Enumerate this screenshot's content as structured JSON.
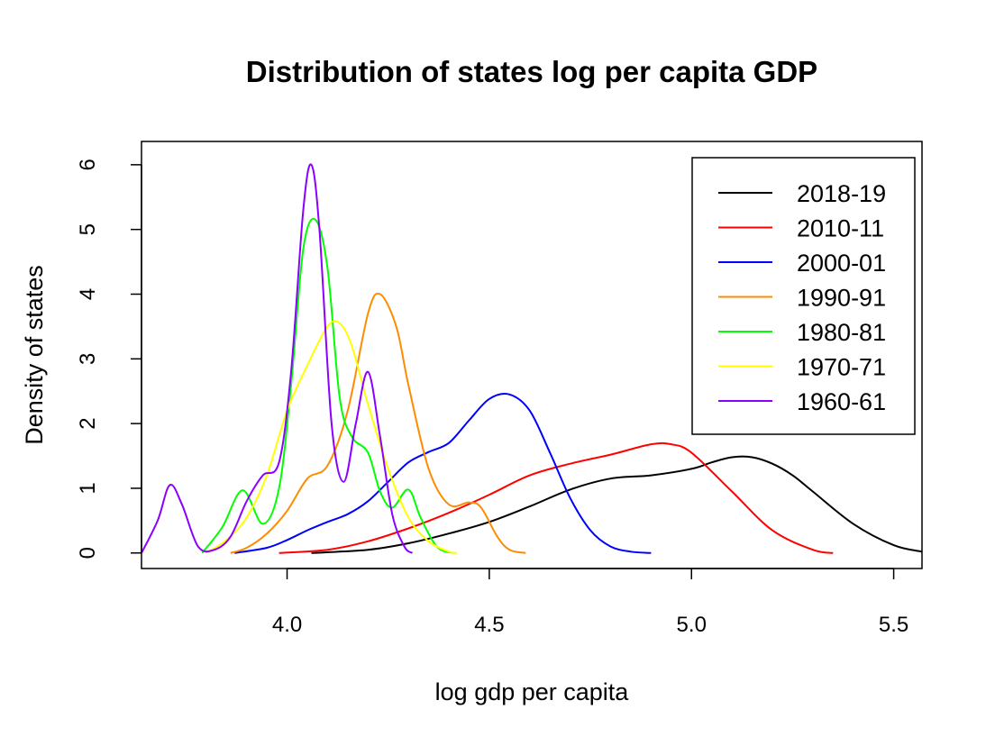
{
  "chart_data": {
    "type": "line",
    "title": "Distribution of states log per capita GDP",
    "xlabel": "log gdp per capita",
    "ylabel": "Density of states",
    "xlim": [
      3.64,
      5.57
    ],
    "ylim": [
      -0.24,
      6.36
    ],
    "xticks": [
      4.0,
      4.5,
      5.0,
      5.5
    ],
    "xtick_labels": [
      "4.0",
      "4.5",
      "5.0",
      "5.5"
    ],
    "yticks": [
      0,
      1,
      2,
      3,
      4,
      5,
      6
    ],
    "ytick_labels": [
      "0",
      "1",
      "2",
      "3",
      "4",
      "5",
      "6"
    ],
    "grid": false,
    "legend_position": "top-right",
    "series": [
      {
        "name": "2018-19",
        "color": "#000000",
        "x": [
          4.06,
          4.2,
          4.3,
          4.4,
          4.5,
          4.6,
          4.7,
          4.8,
          4.9,
          5.0,
          5.05,
          5.1,
          5.15,
          5.2,
          5.25,
          5.3,
          5.4,
          5.5,
          5.57
        ],
        "y": [
          0.0,
          0.05,
          0.15,
          0.3,
          0.48,
          0.72,
          0.98,
          1.15,
          1.2,
          1.3,
          1.4,
          1.48,
          1.48,
          1.38,
          1.2,
          0.95,
          0.45,
          0.12,
          0.02
        ]
      },
      {
        "name": "2010-11",
        "color": "#FF0000",
        "x": [
          3.98,
          4.1,
          4.2,
          4.3,
          4.4,
          4.5,
          4.6,
          4.7,
          4.8,
          4.9,
          4.95,
          5.0,
          5.1,
          5.2,
          5.3,
          5.35
        ],
        "y": [
          0.0,
          0.05,
          0.18,
          0.38,
          0.62,
          0.9,
          1.2,
          1.38,
          1.52,
          1.68,
          1.68,
          1.55,
          0.95,
          0.35,
          0.05,
          0.0
        ]
      },
      {
        "name": "2000-01",
        "color": "#0000FF",
        "x": [
          3.87,
          3.95,
          4.0,
          4.05,
          4.1,
          4.15,
          4.2,
          4.25,
          4.3,
          4.35,
          4.4,
          4.45,
          4.5,
          4.55,
          4.6,
          4.65,
          4.7,
          4.75,
          4.8,
          4.85,
          4.9
        ],
        "y": [
          0.0,
          0.08,
          0.2,
          0.35,
          0.48,
          0.6,
          0.8,
          1.1,
          1.4,
          1.56,
          1.7,
          2.05,
          2.38,
          2.45,
          2.2,
          1.55,
          0.85,
          0.35,
          0.1,
          0.02,
          0.0
        ]
      },
      {
        "name": "1990-91",
        "color": "#FF8C00",
        "x": [
          3.86,
          3.9,
          3.95,
          4.0,
          4.05,
          4.1,
          4.15,
          4.2,
          4.23,
          4.27,
          4.3,
          4.35,
          4.4,
          4.45,
          4.48,
          4.52,
          4.55,
          4.59
        ],
        "y": [
          0.0,
          0.08,
          0.3,
          0.65,
          1.15,
          1.35,
          2.2,
          3.7,
          4.0,
          3.5,
          2.6,
          1.3,
          0.75,
          0.78,
          0.7,
          0.25,
          0.05,
          0.0
        ]
      },
      {
        "name": "1980-81",
        "color": "#00FF00",
        "x": [
          3.79,
          3.84,
          3.89,
          3.94,
          3.98,
          4.01,
          4.04,
          4.07,
          4.1,
          4.13,
          4.16,
          4.2,
          4.23,
          4.26,
          4.3,
          4.33,
          4.37,
          4.41
        ],
        "y": [
          0.0,
          0.4,
          0.97,
          0.45,
          1.0,
          2.6,
          4.7,
          5.15,
          4.4,
          2.4,
          1.8,
          1.55,
          0.95,
          0.7,
          0.98,
          0.55,
          0.1,
          0.0
        ]
      },
      {
        "name": "1970-71",
        "color": "#FFFF00",
        "x": [
          3.8,
          3.85,
          3.9,
          3.95,
          4.0,
          4.05,
          4.1,
          4.13,
          4.16,
          4.2,
          4.25,
          4.3,
          4.35,
          4.4,
          4.42
        ],
        "y": [
          0.0,
          0.2,
          0.55,
          1.2,
          2.2,
          2.9,
          3.5,
          3.55,
          3.2,
          2.3,
          1.3,
          0.55,
          0.18,
          0.02,
          0.0
        ]
      },
      {
        "name": "1960-61",
        "color": "#8B00FF",
        "x": [
          3.64,
          3.68,
          3.71,
          3.74,
          3.78,
          3.82,
          3.86,
          3.9,
          3.94,
          3.98,
          4.01,
          4.04,
          4.06,
          4.08,
          4.11,
          4.14,
          4.17,
          4.2,
          4.23,
          4.26,
          4.29,
          4.31
        ],
        "y": [
          0.0,
          0.5,
          1.05,
          0.75,
          0.1,
          0.05,
          0.25,
          0.8,
          1.2,
          1.4,
          2.8,
          5.3,
          6.0,
          5.0,
          2.0,
          1.1,
          2.0,
          2.8,
          1.8,
          0.6,
          0.1,
          0.0
        ]
      }
    ]
  }
}
